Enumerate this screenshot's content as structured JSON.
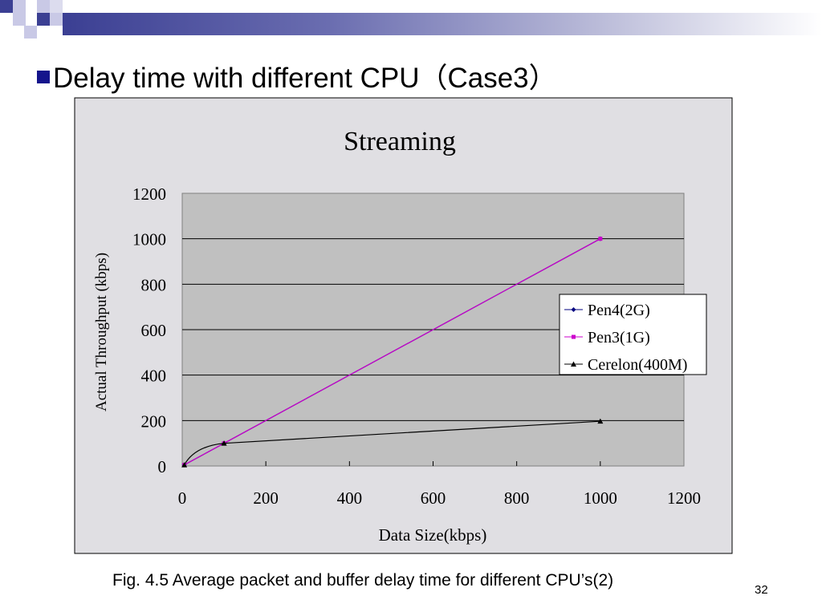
{
  "slide": {
    "title": "Delay time with different CPU（Case3）",
    "caption": "Fig. 4.5 Average packet and buffer delay time for different CPU’s(2)",
    "page_number": "32"
  },
  "colors": {
    "header_dark": "#3b3f93",
    "bullet": "#14148c",
    "chart_background": "#e0dfe3",
    "plot_area": "#c0c0c0",
    "series_pen4": "#000080",
    "series_pen3": "#cc00cc",
    "series_cerelon": "#000000"
  },
  "chart_data": {
    "type": "scatter",
    "title": "Streaming",
    "xlabel": "Data Size(kbps)",
    "ylabel": "Actual Throughput (kbps)",
    "xlim": [
      0,
      1200
    ],
    "ylim": [
      0,
      1200
    ],
    "x_ticks": [
      "0",
      "200",
      "400",
      "600",
      "800",
      "1000",
      "1200"
    ],
    "y_ticks": [
      "0",
      "200",
      "400",
      "600",
      "800",
      "1000",
      "1200"
    ],
    "grid": "horizontal major gridlines",
    "legend_position": "right",
    "series": [
      {
        "name": "Pen4(2G)",
        "marker": "diamond",
        "color": "#000080",
        "points": [
          [
            5,
            5
          ],
          [
            100,
            100
          ],
          [
            1000,
            1000
          ]
        ]
      },
      {
        "name": "Pen3(1G)",
        "marker": "square",
        "color": "#cc00cc",
        "points": [
          [
            5,
            5
          ],
          [
            100,
            100
          ],
          [
            1000,
            1000
          ]
        ]
      },
      {
        "name": "Cerelon(400M)",
        "marker": "triangle",
        "color": "#000000",
        "points": [
          [
            5,
            5
          ],
          [
            100,
            100
          ],
          [
            1000,
            197
          ]
        ]
      }
    ]
  }
}
